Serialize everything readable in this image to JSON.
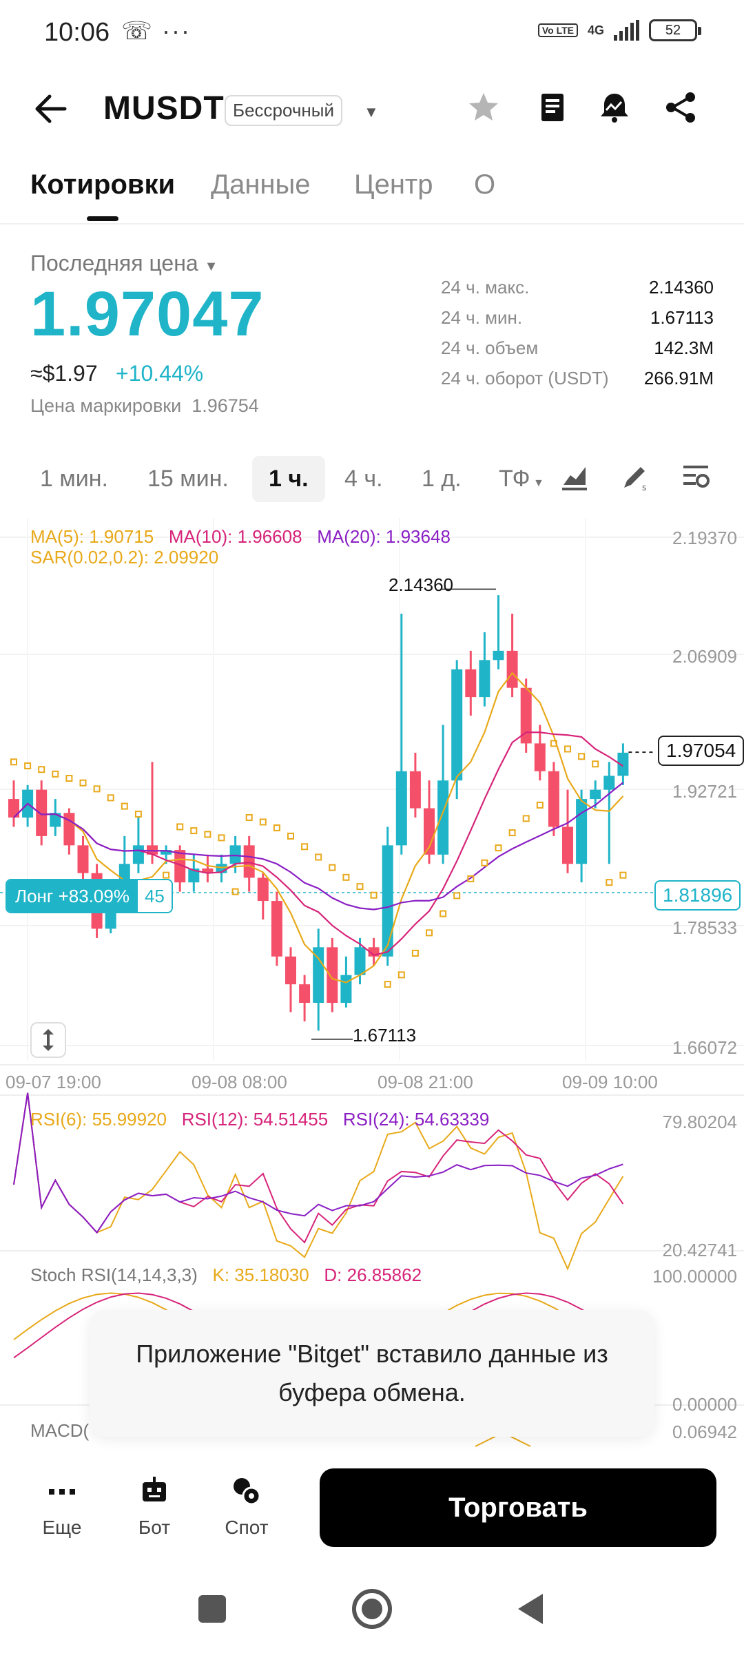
{
  "status_bar": {
    "time": "10:06",
    "misc": "☏ ···",
    "volte": "Vo LTE",
    "network": "4G",
    "battery": "52"
  },
  "header": {
    "title": "MUSDT",
    "badge": "Бессрочный"
  },
  "tabs": [
    {
      "label": "Котировки",
      "active": true
    },
    {
      "label": "Данные",
      "active": false
    },
    {
      "label": "Центр",
      "active": false
    },
    {
      "label": "О",
      "active": false
    }
  ],
  "price": {
    "label": "Последняя цена",
    "value": "1.97047",
    "usd": "≈$1.97",
    "change": "+10.44%",
    "mark_label": "Цена маркировки",
    "mark_value": "1.96754"
  },
  "stats": [
    {
      "label": "24 ч. макс.",
      "value": "2.14360"
    },
    {
      "label": "24 ч. мин.",
      "value": "1.67113"
    },
    {
      "label": "24 ч. объем",
      "value": "142.3M"
    },
    {
      "label": "24 ч. оборот (USDT)",
      "value": "266.91M"
    }
  ],
  "timeframes": [
    {
      "label": "1 мин.",
      "active": false
    },
    {
      "label": "15 мин.",
      "active": false
    },
    {
      "label": "1 ч.",
      "active": true
    },
    {
      "label": "4 ч.",
      "active": false
    },
    {
      "label": "1 д.",
      "active": false
    },
    {
      "label": "ТФ",
      "active": false
    }
  ],
  "indicators": {
    "ma5": "MA(5): 1.90715",
    "ma10": "MA(10): 1.96608",
    "ma20": "MA(20): 1.93648",
    "sar": "SAR(0.02,0.2): 2.09920",
    "rsi6": "RSI(6): 55.99920",
    "rsi12": "RSI(12): 54.51455",
    "rsi24": "RSI(24): 54.63339",
    "stoch": "Stoch RSI(14,14,3,3)",
    "stoch_k": "K: 35.18030",
    "stoch_d": "D: 26.85862",
    "macd": "MACD("
  },
  "colors": {
    "up": "#1fb4c8",
    "down": "#f5506a",
    "ma5": "#e8a91a",
    "ma10": "#d6247a",
    "ma20": "#8a1fc4",
    "sar": "#e8a91a"
  },
  "chart_data": {
    "type": "candlestick",
    "y_ticks": [
      "2.19370",
      "2.06909",
      "1.92721",
      "1.78533",
      "1.66072"
    ],
    "x_ticks": [
      "09-07 19:00",
      "09-08 08:00",
      "09-08 21:00",
      "09-09 10:00"
    ],
    "ylim": [
      1.645,
      2.21
    ],
    "last_price": "1.97054",
    "position_price": "1.81896",
    "position_label": "Лонг +83.09%",
    "position_qty": "45",
    "high_label": "2.14360",
    "low_label": "1.67113",
    "rsi_ticks": [
      "79.80204",
      "20.42741"
    ],
    "stoch_ticks": [
      "100.00000",
      "0.00000"
    ],
    "macd_tick": "0.06942",
    "candles": [
      [
        1.92,
        1.9,
        1.94,
        1.89
      ],
      [
        1.9,
        1.93,
        1.935,
        1.89
      ],
      [
        1.93,
        1.88,
        1.94,
        1.87
      ],
      [
        1.89,
        1.905,
        1.92,
        1.88
      ],
      [
        1.905,
        1.87,
        1.91,
        1.86
      ],
      [
        1.87,
        1.84,
        1.88,
        1.83
      ],
      [
        1.84,
        1.78,
        1.85,
        1.77
      ],
      [
        1.78,
        1.82,
        1.83,
        1.775
      ],
      [
        1.82,
        1.85,
        1.88,
        1.81
      ],
      [
        1.85,
        1.87,
        1.9,
        1.84
      ],
      [
        1.87,
        1.86,
        1.96,
        1.85
      ],
      [
        1.86,
        1.865,
        1.87,
        1.85
      ],
      [
        1.865,
        1.83,
        1.87,
        1.82
      ],
      [
        1.83,
        1.845,
        1.86,
        1.82
      ],
      [
        1.845,
        1.84,
        1.86,
        1.83
      ],
      [
        1.84,
        1.85,
        1.86,
        1.83
      ],
      [
        1.85,
        1.87,
        1.88,
        1.84
      ],
      [
        1.87,
        1.835,
        1.88,
        1.82
      ],
      [
        1.835,
        1.81,
        1.84,
        1.79
      ],
      [
        1.81,
        1.75,
        1.82,
        1.74
      ],
      [
        1.75,
        1.72,
        1.76,
        1.69
      ],
      [
        1.72,
        1.7,
        1.73,
        1.68
      ],
      [
        1.7,
        1.76,
        1.78,
        1.67
      ],
      [
        1.76,
        1.7,
        1.77,
        1.69
      ],
      [
        1.7,
        1.73,
        1.75,
        1.695
      ],
      [
        1.73,
        1.76,
        1.77,
        1.72
      ],
      [
        1.76,
        1.75,
        1.77,
        1.74
      ],
      [
        1.75,
        1.87,
        1.89,
        1.74
      ],
      [
        1.87,
        1.95,
        2.12,
        1.86
      ],
      [
        1.95,
        1.91,
        1.97,
        1.9
      ],
      [
        1.91,
        1.86,
        1.94,
        1.85
      ],
      [
        1.86,
        1.94,
        2.0,
        1.85
      ],
      [
        1.94,
        2.06,
        2.07,
        1.92
      ],
      [
        2.06,
        2.03,
        2.08,
        2.01
      ],
      [
        2.03,
        2.07,
        2.1,
        2.02
      ],
      [
        2.07,
        2.08,
        2.14,
        2.06
      ],
      [
        2.08,
        2.04,
        2.12,
        2.03
      ],
      [
        2.04,
        1.98,
        2.05,
        1.97
      ],
      [
        1.98,
        1.95,
        2.0,
        1.94
      ],
      [
        1.95,
        1.89,
        1.96,
        1.88
      ],
      [
        1.89,
        1.85,
        1.93,
        1.84
      ],
      [
        1.85,
        1.92,
        1.93,
        1.83
      ],
      [
        1.92,
        1.93,
        1.94,
        1.91
      ],
      [
        1.93,
        1.945,
        1.96,
        1.85
      ],
      [
        1.945,
        1.97,
        1.98,
        1.935
      ]
    ]
  },
  "toast": {
    "text": "Приложение \"Bitget\" вставило данные из буфера обмена."
  },
  "bottom_bar": {
    "more_label": "Еще",
    "bot_label": "Бот",
    "spot_label": "Спот",
    "trade_label": "Торговать"
  }
}
